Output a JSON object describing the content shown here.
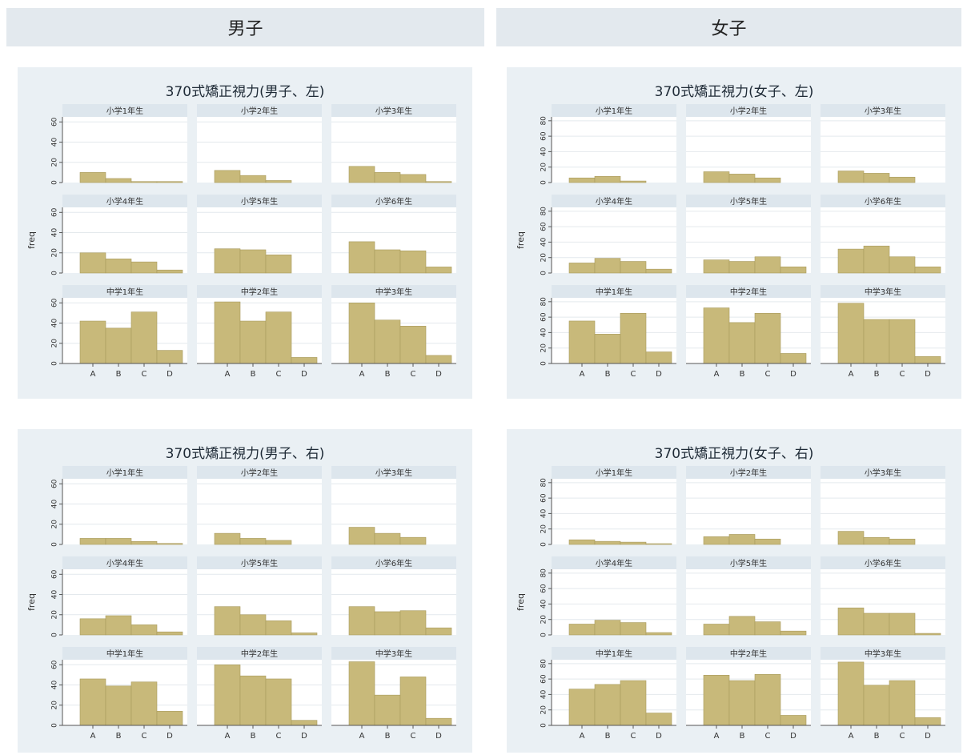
{
  "headers": {
    "male": "男子",
    "female": "女子"
  },
  "colors": {
    "bar": "#c8b97a",
    "bar_edge": "#a89a5c",
    "strip": "#dde6ed",
    "panel_bg": "#eaf0f4",
    "plot_bg": "#ffffff",
    "grid": "#e4e9ed"
  },
  "chart_data": [
    {
      "type": "bar",
      "title": "370式矯正視力(男子、左)",
      "ylabel": "freq",
      "categories": [
        "A",
        "B",
        "C",
        "D"
      ],
      "ylim": [
        0,
        65
      ],
      "yticks": [
        0,
        20,
        40,
        60
      ],
      "grid": true,
      "facets": [
        {
          "label": "小学1年生",
          "values": [
            10,
            4,
            1,
            1
          ]
        },
        {
          "label": "小学2年生",
          "values": [
            12,
            7,
            2,
            0
          ]
        },
        {
          "label": "小学3年生",
          "values": [
            16,
            10,
            8,
            1
          ]
        },
        {
          "label": "小学4年生",
          "values": [
            20,
            14,
            11,
            3
          ]
        },
        {
          "label": "小学5年生",
          "values": [
            24,
            23,
            18,
            0
          ]
        },
        {
          "label": "小学6年生",
          "values": [
            31,
            23,
            22,
            6
          ]
        },
        {
          "label": "中学1年生",
          "values": [
            42,
            35,
            51,
            13
          ]
        },
        {
          "label": "中学2年生",
          "values": [
            61,
            42,
            51,
            6
          ]
        },
        {
          "label": "中学3年生",
          "values": [
            60,
            43,
            37,
            8
          ]
        }
      ]
    },
    {
      "type": "bar",
      "title": "370式矯正視力(女子、左)",
      "ylabel": "freq",
      "categories": [
        "A",
        "B",
        "C",
        "D"
      ],
      "ylim": [
        0,
        85
      ],
      "yticks": [
        0,
        20,
        40,
        60,
        80
      ],
      "grid": true,
      "facets": [
        {
          "label": "小学1年生",
          "values": [
            6,
            8,
            2,
            0
          ]
        },
        {
          "label": "小学2年生",
          "values": [
            14,
            11,
            6,
            0
          ]
        },
        {
          "label": "小学3年生",
          "values": [
            15,
            12,
            7,
            0
          ]
        },
        {
          "label": "小学4年生",
          "values": [
            13,
            19,
            15,
            5
          ]
        },
        {
          "label": "小学5年生",
          "values": [
            17,
            15,
            21,
            8
          ]
        },
        {
          "label": "小学6年生",
          "values": [
            31,
            35,
            21,
            8
          ]
        },
        {
          "label": "中学1年生",
          "values": [
            55,
            38,
            65,
            15
          ]
        },
        {
          "label": "中学2年生",
          "values": [
            72,
            53,
            65,
            13
          ]
        },
        {
          "label": "中学3年生",
          "values": [
            78,
            57,
            57,
            9
          ]
        }
      ]
    },
    {
      "type": "bar",
      "title": "370式矯正視力(男子、右)",
      "ylabel": "freq",
      "categories": [
        "A",
        "B",
        "C",
        "D"
      ],
      "ylim": [
        0,
        65
      ],
      "yticks": [
        0,
        20,
        40,
        60
      ],
      "grid": true,
      "facets": [
        {
          "label": "小学1年生",
          "values": [
            6,
            6,
            3,
            1
          ]
        },
        {
          "label": "小学2年生",
          "values": [
            11,
            6,
            4,
            0
          ]
        },
        {
          "label": "小学3年生",
          "values": [
            17,
            11,
            7,
            0
          ]
        },
        {
          "label": "小学4年生",
          "values": [
            16,
            19,
            10,
            3
          ]
        },
        {
          "label": "小学5年生",
          "values": [
            28,
            20,
            14,
            2
          ]
        },
        {
          "label": "小学6年生",
          "values": [
            28,
            23,
            24,
            7
          ]
        },
        {
          "label": "中学1年生",
          "values": [
            46,
            39,
            43,
            14
          ]
        },
        {
          "label": "中学2年生",
          "values": [
            60,
            49,
            46,
            5
          ]
        },
        {
          "label": "中学3年生",
          "values": [
            63,
            30,
            48,
            7
          ]
        }
      ]
    },
    {
      "type": "bar",
      "title": "370式矯正視力(女子、右)",
      "ylabel": "freq",
      "categories": [
        "A",
        "B",
        "C",
        "D"
      ],
      "ylim": [
        0,
        85
      ],
      "yticks": [
        0,
        20,
        40,
        60,
        80
      ],
      "grid": true,
      "facets": [
        {
          "label": "小学1年生",
          "values": [
            6,
            4,
            3,
            1
          ]
        },
        {
          "label": "小学2年生",
          "values": [
            10,
            13,
            7,
            0
          ]
        },
        {
          "label": "小学3年生",
          "values": [
            17,
            9,
            7,
            0
          ]
        },
        {
          "label": "小学4年生",
          "values": [
            14,
            19,
            16,
            3
          ]
        },
        {
          "label": "小学5年生",
          "values": [
            14,
            24,
            17,
            5
          ]
        },
        {
          "label": "小学6年生",
          "values": [
            35,
            28,
            28,
            2
          ]
        },
        {
          "label": "中学1年生",
          "values": [
            47,
            53,
            58,
            16
          ]
        },
        {
          "label": "中学2年生",
          "values": [
            65,
            58,
            66,
            13
          ]
        },
        {
          "label": "中学3年生",
          "values": [
            82,
            52,
            58,
            10
          ]
        }
      ]
    }
  ]
}
